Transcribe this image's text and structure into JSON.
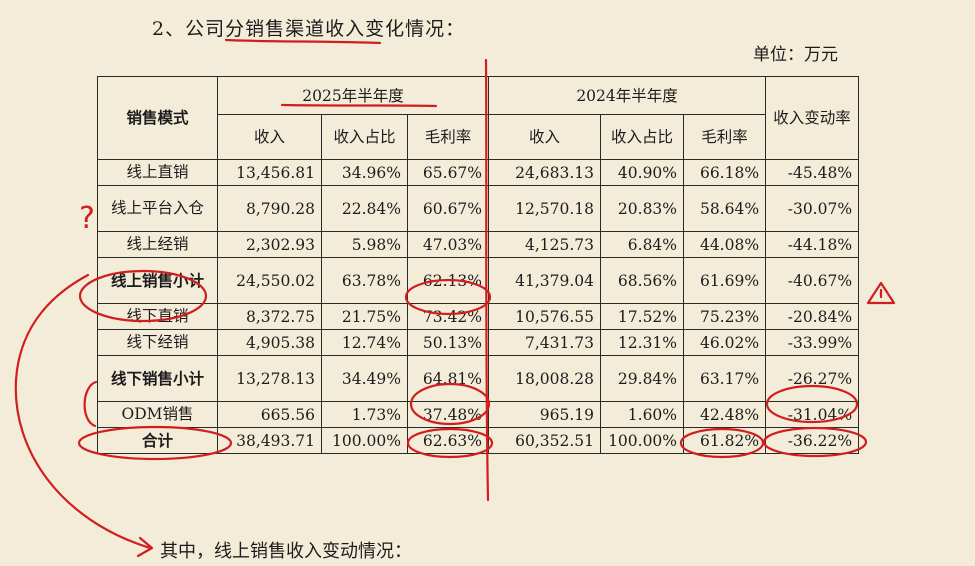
{
  "heading": "2、公司分销售渠道收入变化情况：",
  "unit": "单位：万元",
  "table": {
    "head": {
      "mode": "销售模式",
      "period2025": "2025年半年度",
      "period2024": "2024年半年度",
      "change": "收入变动率",
      "revenue": "收入",
      "share": "收入占比",
      "margin": "毛利率"
    },
    "rows": [
      {
        "label": "线上直销",
        "r25": "13,456.81",
        "s25": "34.96%",
        "m25": "65.67%",
        "r24": "24,683.13",
        "s24": "40.90%",
        "m24": "66.18%",
        "chg": "-45.48%"
      },
      {
        "label": "线上平台入仓",
        "r25": "8,790.28",
        "s25": "22.84%",
        "m25": "60.67%",
        "r24": "12,570.18",
        "s24": "20.83%",
        "m24": "58.64%",
        "chg": "-30.07%"
      },
      {
        "label": "线上经销",
        "r25": "2,302.93",
        "s25": "5.98%",
        "m25": "47.03%",
        "r24": "4,125.73",
        "s24": "6.84%",
        "m24": "44.08%",
        "chg": "-44.18%"
      },
      {
        "label": "线上销售小计",
        "r25": "24,550.02",
        "s25": "63.78%",
        "m25": "62.13%",
        "r24": "41,379.04",
        "s24": "68.56%",
        "m24": "61.69%",
        "chg": "-40.67%"
      },
      {
        "label": "线下直销",
        "r25": "8,372.75",
        "s25": "21.75%",
        "m25": "73.42%",
        "r24": "10,576.55",
        "s24": "17.52%",
        "m24": "75.23%",
        "chg": "-20.84%"
      },
      {
        "label": "线下经销",
        "r25": "4,905.38",
        "s25": "12.74%",
        "m25": "50.13%",
        "r24": "7,431.73",
        "s24": "12.31%",
        "m24": "46.02%",
        "chg": "-33.99%"
      },
      {
        "label": "线下销售小计",
        "r25": "13,278.13",
        "s25": "34.49%",
        "m25": "64.81%",
        "r24": "18,008.28",
        "s24": "29.84%",
        "m24": "63.17%",
        "chg": "-26.27%"
      },
      {
        "label": "ODM销售",
        "r25": "665.56",
        "s25": "1.73%",
        "m25": "37.48%",
        "r24": "965.19",
        "s24": "1.60%",
        "m24": "42.48%",
        "chg": "-31.04%"
      },
      {
        "label": "合计",
        "r25": "38,493.71",
        "s25": "100.00%",
        "m25": "62.63%",
        "r24": "60,352.51",
        "s24": "100.00%",
        "m24": "61.82%",
        "chg": "-36.22%"
      }
    ]
  },
  "footer": "其中，线上销售收入变动情况：",
  "annotations": {
    "question_mark": "?",
    "ink_color": "#d11e1e"
  }
}
